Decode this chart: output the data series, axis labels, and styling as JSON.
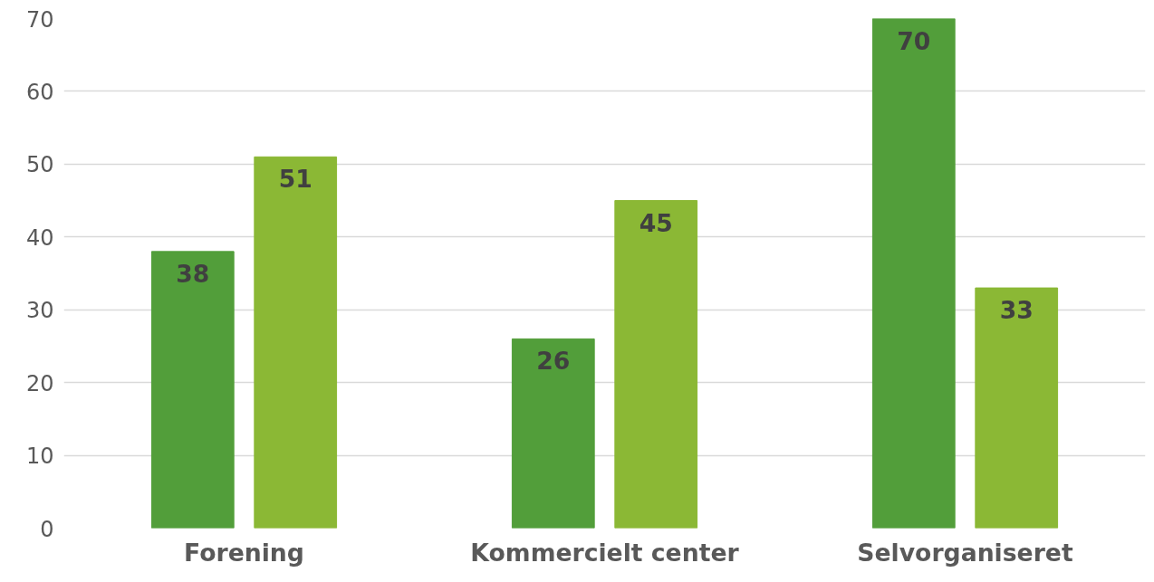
{
  "chart_data": {
    "type": "bar",
    "categories": [
      "Forening",
      "Kommercielt center",
      "Selvorganiseret"
    ],
    "series": [
      {
        "color": "#529e3a",
        "values": [
          38,
          26,
          70
        ]
      },
      {
        "color": "#8bb835",
        "values": [
          51,
          45,
          33
        ]
      }
    ],
    "ylim": [
      0,
      70
    ],
    "yticks": [
      0,
      10,
      20,
      30,
      40,
      50,
      60,
      70
    ],
    "grid": "y",
    "data_labels": true
  }
}
